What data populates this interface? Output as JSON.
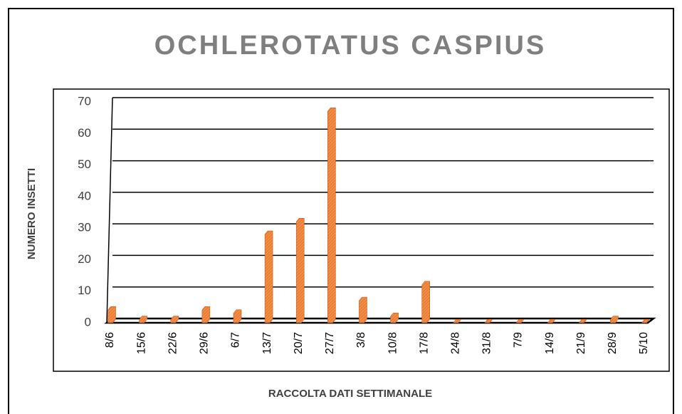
{
  "chart_data": {
    "type": "bar",
    "title": "OCHLEROTATUS CASPIUS",
    "x_label": "RACCOLTA DATI SETTIMANALE",
    "y_label": "NUMERO INSETTI",
    "categories": [
      "8/6",
      "15/6",
      "22/6",
      "29/6",
      "6/7",
      "13/7",
      "20/7",
      "27/7",
      "3/8",
      "10/8",
      "17/8",
      "24/8",
      "31/8",
      "7/9",
      "14/9",
      "21/9",
      "28/9",
      "5/10"
    ],
    "values": [
      4,
      1,
      1,
      4,
      3,
      28,
      32,
      67,
      7,
      2,
      12,
      0,
      0,
      0,
      0,
      0,
      1,
      0
    ],
    "color": "#ed7d31",
    "ylim": [
      0,
      70
    ],
    "yticks": [
      0,
      10,
      20,
      30,
      40,
      50,
      60,
      70
    ],
    "grid": true
  }
}
